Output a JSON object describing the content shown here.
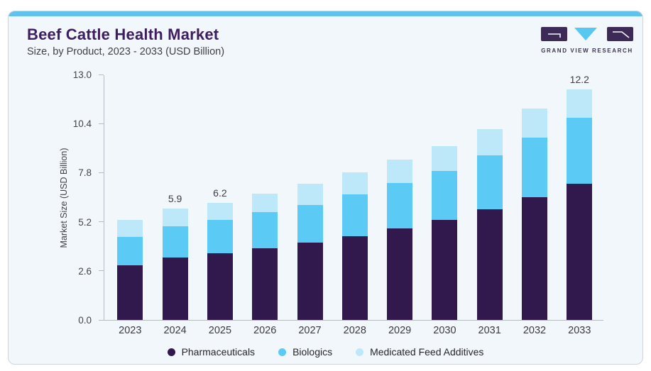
{
  "header": {
    "title": "Beef Cattle Health Market",
    "subtitle": "Size, by Product, 2023 - 2033 (USD Billion)"
  },
  "logo": {
    "brand": "GRAND VIEW RESEARCH",
    "purple": "#3d2a57",
    "blue": "#56c8f2"
  },
  "colors": {
    "card_background": "#f2f7fb",
    "top_strip": "#5fc3ee",
    "axis_line": "#b4bcc6",
    "title_text": "#3d1e62",
    "body_text": "#3f4146"
  },
  "chart_data": {
    "type": "bar",
    "stacked": true,
    "title": "Beef Cattle Health Market Size, by Product, 2023 - 2033 (USD Billion)",
    "categories": [
      "2023",
      "2024",
      "2025",
      "2026",
      "2027",
      "2028",
      "2029",
      "2030",
      "2031",
      "2032",
      "2033"
    ],
    "series": [
      {
        "name": "Pharmaceuticals",
        "color": "#32194d",
        "values": [
          2.9,
          3.3,
          3.55,
          3.8,
          4.1,
          4.45,
          4.85,
          5.3,
          5.85,
          6.5,
          7.2
        ]
      },
      {
        "name": "Biologics",
        "color": "#5bcbf5",
        "values": [
          1.5,
          1.65,
          1.75,
          1.9,
          2.0,
          2.2,
          2.4,
          2.6,
          2.85,
          3.15,
          3.5
        ]
      },
      {
        "name": "Medicated Feed Additives",
        "color": "#bde8fa",
        "values": [
          0.9,
          0.95,
          0.9,
          1.0,
          1.1,
          1.15,
          1.25,
          1.3,
          1.4,
          1.55,
          1.5
        ]
      }
    ],
    "totals": [
      5.3,
      5.9,
      6.2,
      6.7,
      7.2,
      7.8,
      8.5,
      9.2,
      10.1,
      11.2,
      12.2
    ],
    "bar_value_labels": [
      "",
      "5.9",
      "6.2",
      "",
      "",
      "",
      "",
      "",
      "",
      "",
      "12.2"
    ],
    "xlabel": "",
    "ylabel": "Market Size (USD Billion)",
    "yticks": [
      0.0,
      2.6,
      5.2,
      7.8,
      10.4,
      13.0
    ],
    "ytick_labels": [
      "0.0",
      "2.6",
      "5.2",
      "7.8",
      "10.4",
      "13.0"
    ],
    "ylim": [
      0,
      13
    ],
    "grid": false,
    "legend_position": "bottom"
  }
}
